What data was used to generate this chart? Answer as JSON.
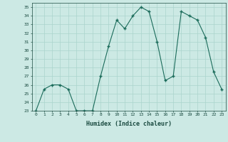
{
  "x": [
    0,
    1,
    2,
    3,
    4,
    5,
    6,
    7,
    8,
    9,
    10,
    11,
    12,
    13,
    14,
    15,
    16,
    17,
    18,
    19,
    20,
    21,
    22,
    23
  ],
  "y": [
    23,
    25.5,
    26,
    26,
    25.5,
    23,
    23,
    23,
    27,
    30.5,
    33.5,
    32.5,
    34,
    35,
    34.5,
    31,
    26.5,
    27,
    34.5,
    34,
    33.5,
    31.5,
    27.5,
    25.5
  ],
  "line_color": "#1a6b5a",
  "marker": "+",
  "marker_size": 3.5,
  "marker_linewidth": 1.0,
  "bg_color": "#cce9e4",
  "grid_color": "#aad4cc",
  "xlabel": "Humidex (Indice chaleur)",
  "ylim": [
    23,
    35.5
  ],
  "xlim": [
    -0.5,
    23.5
  ],
  "yticks": [
    23,
    24,
    25,
    26,
    27,
    28,
    29,
    30,
    31,
    32,
    33,
    34,
    35
  ],
  "xticks": [
    0,
    1,
    2,
    3,
    4,
    5,
    6,
    7,
    8,
    9,
    10,
    11,
    12,
    13,
    14,
    15,
    16,
    17,
    18,
    19,
    20,
    21,
    22,
    23
  ]
}
